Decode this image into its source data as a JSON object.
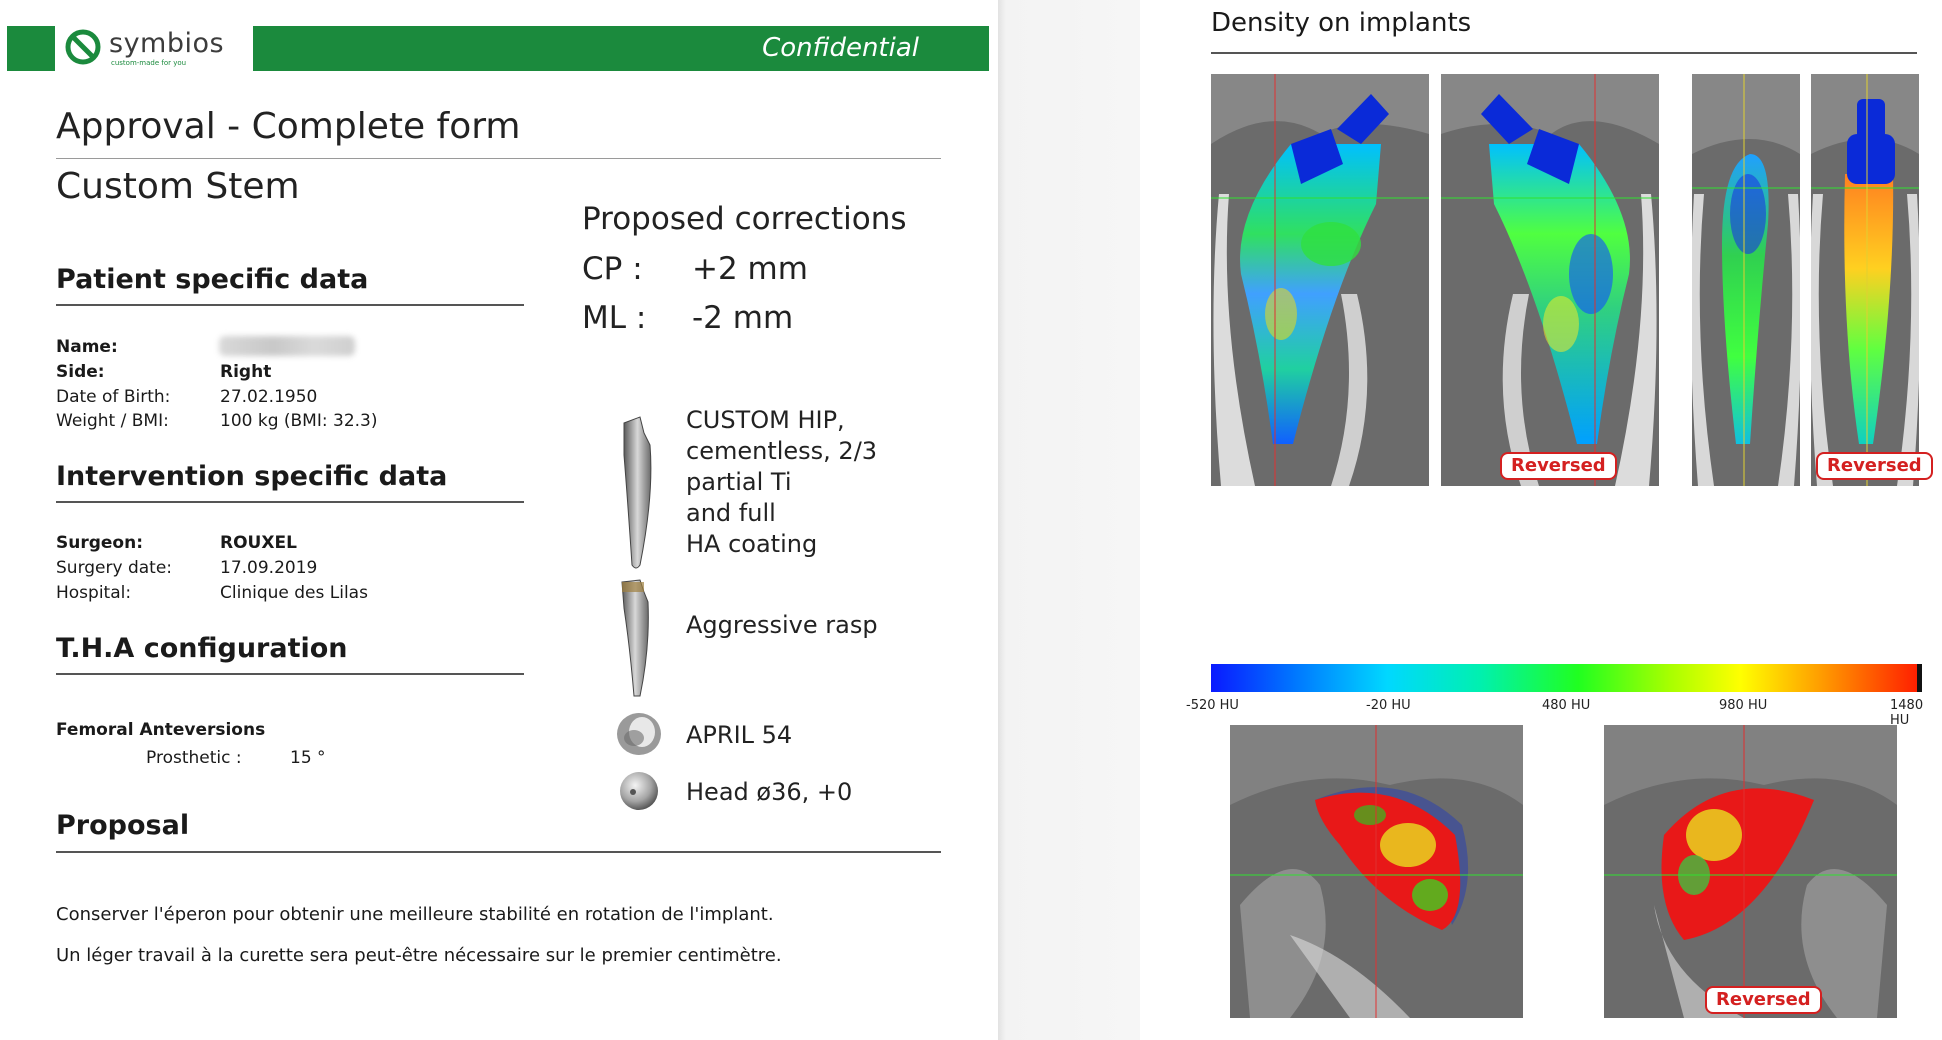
{
  "header": {
    "logo_name": "symbios",
    "logo_tagline": "custom-made for you",
    "confidential": "Confidential"
  },
  "titles": {
    "main": "Approval - Complete form",
    "sub": "Custom Stem"
  },
  "patient": {
    "heading": "Patient specific data",
    "fields": [
      {
        "label": "Name:",
        "value": ""
      },
      {
        "label": "Side:",
        "value": "Right"
      },
      {
        "label": "Date of Birth:",
        "value": "27.02.1950"
      },
      {
        "label": "Weight / BMI:",
        "value": "100 kg (BMI: 32.3)"
      }
    ]
  },
  "intervention": {
    "heading": "Intervention specific data",
    "fields": [
      {
        "label": "Surgeon:",
        "value": "ROUXEL"
      },
      {
        "label": "Surgery date:",
        "value": "17.09.2019"
      },
      {
        "label": "Hospital:",
        "value": "Clinique des Lilas"
      }
    ]
  },
  "tha": {
    "heading": "T.H.A configuration",
    "sub_heading": "Femoral Anteversions",
    "prosthetic_label": "Prosthetic :",
    "prosthetic_value": "15 °"
  },
  "proposal": {
    "heading": "Proposal",
    "lines": [
      "Conserver l'éperon pour obtenir une meilleure stabilité en rotation de l'implant.",
      "Un léger travail à la curette sera peut-être nécessaire sur le premier centimètre."
    ]
  },
  "corrections": {
    "title": "Proposed corrections",
    "items": [
      {
        "label": "CP :",
        "value": "+2 mm"
      },
      {
        "label": "ML :",
        "value": "-2 mm"
      }
    ]
  },
  "components": [
    {
      "icon": "hip-stem-icon",
      "lines": [
        "CUSTOM HIP,",
        "cementless, 2/3",
        "partial Ti",
        "and full",
        "HA coating"
      ]
    },
    {
      "icon": "rasp-icon",
      "lines": [
        "Aggressive rasp"
      ]
    },
    {
      "icon": "cup-icon",
      "lines": [
        "APRIL 54"
      ]
    },
    {
      "icon": "femoral-head-icon",
      "lines": [
        "Head ø36, +0"
      ]
    }
  ],
  "density": {
    "title": "Density on implants",
    "reversed_label": "Reversed",
    "colorbar_ticks": [
      "-520 HU",
      "-20 HU",
      "480 HU",
      "980 HU",
      "1480 HU"
    ],
    "colorbar_colors": [
      "#0a1aff",
      "#00d8ff",
      "#20ff20",
      "#ffff00",
      "#ff2000"
    ]
  }
}
